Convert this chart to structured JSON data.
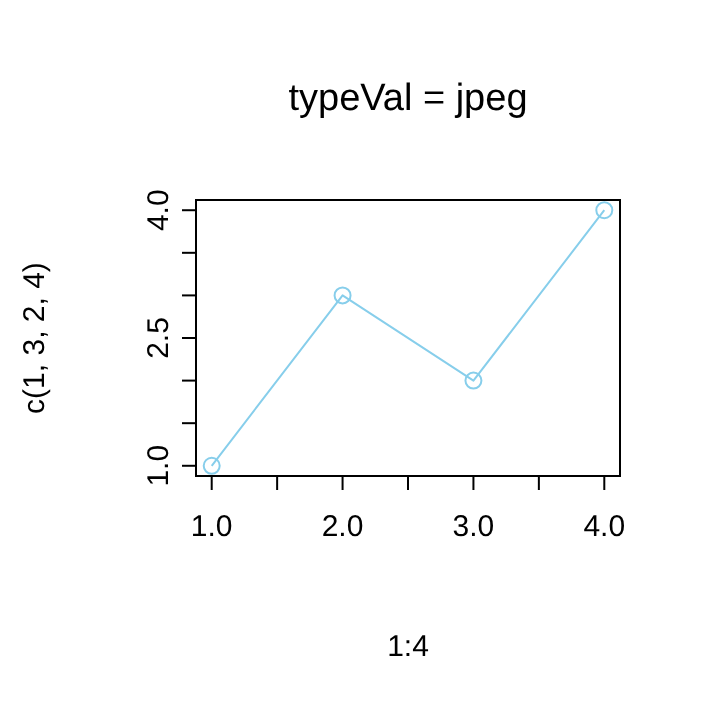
{
  "chart_data": {
    "type": "line",
    "title": "typeVal = jpeg",
    "xlabel": "1:4",
    "ylabel": "c(1, 3, 2, 4)",
    "x": [
      1,
      2,
      3,
      4
    ],
    "series": [
      {
        "color": "#87ceeb",
        "values": [
          1,
          3,
          2,
          4
        ]
      }
    ],
    "marker": "circle",
    "line_style": "solid",
    "xlim": [
      0.88,
      4.12
    ],
    "ylim": [
      0.88,
      4.12
    ],
    "xticks": [
      {
        "value": 1,
        "label": "1.0"
      },
      {
        "value": 1.5,
        "label": null
      },
      {
        "value": 2,
        "label": "2.0"
      },
      {
        "value": 2.5,
        "label": null
      },
      {
        "value": 3,
        "label": "3.0"
      },
      {
        "value": 3.5,
        "label": null
      },
      {
        "value": 4,
        "label": "4.0"
      }
    ],
    "yticks": [
      {
        "value": 1,
        "label": "1.0"
      },
      {
        "value": 1.5,
        "label": null
      },
      {
        "value": 2,
        "label": null
      },
      {
        "value": 2.5,
        "label": "2.5"
      },
      {
        "value": 3,
        "label": null
      },
      {
        "value": 3.5,
        "label": null
      },
      {
        "value": 4,
        "label": "4.0"
      }
    ]
  }
}
